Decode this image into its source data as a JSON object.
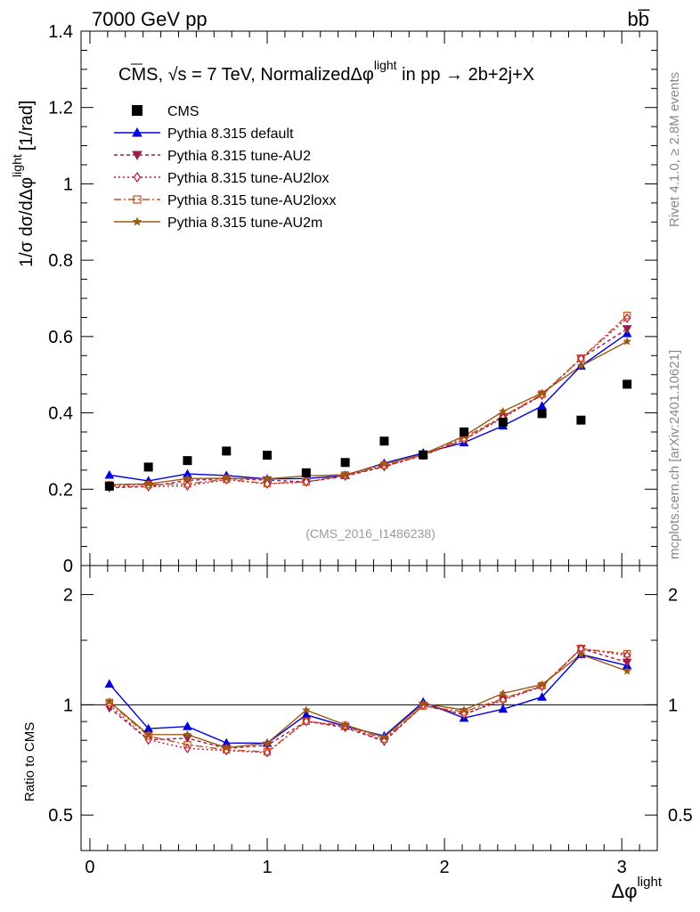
{
  "header": {
    "left": "7000 GeV pp",
    "right": "bb̅"
  },
  "side_labels": {
    "rivet": "Rivet 4.1.0, ≥ 2.8M events",
    "mcplots": "mcplots.cern.ch [arXiv:2401.10621]"
  },
  "chart_data": {
    "type": "line",
    "title": "CMS, √s = 7 TeV, NormalizedΔφlight in pp → 2b+2j+X",
    "title_parts": {
      "prefix": "CMS, ",
      "sqrt": "√",
      "s_eq": "s = 7 TeV, NormalizedΔφ",
      "sup": "light",
      "suffix": " in pp →  2b+2j+X"
    },
    "watermark": "(CMS_2016_I1486238)",
    "xlabel": {
      "main": "Δφ",
      "sup": "light"
    },
    "ylabel": {
      "main": "1/σ dσ/dΔφ",
      "sup": "light",
      "unit": "[1/rad]"
    },
    "ratio_ylabel": "Ratio to CMS",
    "xlim": [
      -0.05,
      3.2
    ],
    "ylim": [
      0,
      1.4
    ],
    "ratio_ylim": [
      0.4,
      2.4
    ],
    "x_ticks": [
      0,
      1,
      2,
      3
    ],
    "x_tick_labels": [
      "0",
      "1",
      "2",
      "3"
    ],
    "y_ticks": [
      0,
      0.2,
      0.4,
      0.6,
      0.8,
      1.0,
      1.2,
      1.4
    ],
    "y_tick_labels": [
      "0",
      "0.2",
      "0.4",
      "0.6",
      "0.8",
      "1",
      "1.2",
      "1.4"
    ],
    "ratio_ticks": [
      0.5,
      1,
      2
    ],
    "ratio_tick_labels": [
      "0.5",
      "1",
      "2"
    ],
    "x": [
      0.11,
      0.33,
      0.55,
      0.77,
      1.0,
      1.22,
      1.44,
      1.66,
      1.88,
      2.11,
      2.33,
      2.55,
      2.77,
      3.03
    ],
    "data": {
      "name": "CMS",
      "values": [
        0.208,
        0.258,
        0.275,
        0.3,
        0.289,
        0.243,
        0.27,
        0.326,
        0.29,
        0.35,
        0.376,
        0.398,
        0.381,
        0.475
      ]
    },
    "series": [
      {
        "name": "Pythia 8.315 default",
        "color": "#0000dd",
        "marker": "tri-up",
        "dash": "",
        "values": [
          0.237,
          0.222,
          0.24,
          0.236,
          0.227,
          0.228,
          0.236,
          0.268,
          0.295,
          0.322,
          0.366,
          0.418,
          0.523,
          0.608
        ]
      },
      {
        "name": "Pythia 8.315 tune-AU2",
        "color": "#9b1f4a",
        "marker": "tri-down",
        "dash": "4,3",
        "values": [
          0.204,
          0.207,
          0.223,
          0.228,
          0.224,
          0.219,
          0.234,
          0.259,
          0.289,
          0.329,
          0.39,
          0.446,
          0.543,
          0.62
        ]
      },
      {
        "name": "Pythia 8.315 tune-AU2lox",
        "color": "#c0103a",
        "marker": "diamond",
        "dash": "2,3",
        "values": [
          0.208,
          0.207,
          0.209,
          0.225,
          0.214,
          0.219,
          0.236,
          0.26,
          0.289,
          0.33,
          0.387,
          0.447,
          0.542,
          0.648
        ]
      },
      {
        "name": "Pythia 8.315 tune-AU2loxx",
        "color": "#c8501e",
        "marker": "square-open",
        "dash": "8,3,2,3",
        "values": [
          0.211,
          0.212,
          0.214,
          0.226,
          0.215,
          0.219,
          0.237,
          0.263,
          0.288,
          0.335,
          0.391,
          0.449,
          0.542,
          0.655
        ]
      },
      {
        "name": "Pythia 8.315 tune-AU2m",
        "color": "#9b5a14",
        "marker": "star",
        "dash": "",
        "values": [
          0.212,
          0.214,
          0.228,
          0.229,
          0.227,
          0.235,
          0.238,
          0.266,
          0.292,
          0.339,
          0.404,
          0.452,
          0.523,
          0.587
        ]
      }
    ]
  }
}
